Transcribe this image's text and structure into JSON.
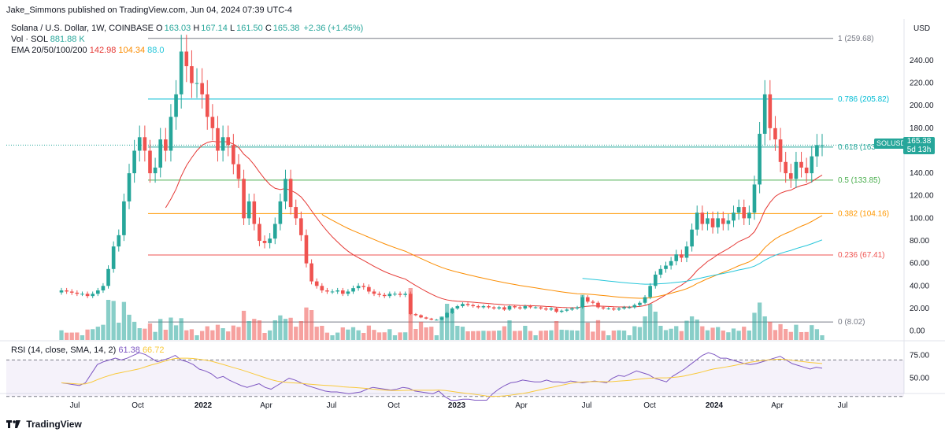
{
  "publisher": "Jake_Simmons published on TradingView.com, Jun 04, 2024 07:39 UTC-4",
  "legend": {
    "symbol": "Solana / U.S. Dollar, 1W, COINBASE",
    "o_label": "O",
    "o": "163.03",
    "h_label": "H",
    "h": "167.14",
    "l_label": "L",
    "l": "161.50",
    "c_label": "C",
    "c": "165.38",
    "change": "+2.36 (+1.45%)",
    "vol_label": "Vol · SOL",
    "vol": "881.88 K",
    "ema_label": "EMA 20/50/100/200",
    "ema20": "142.98",
    "ema50": "104.34",
    "ema100": "88.0",
    "rsi_label": "RSI (14, close, SMA, 14, 2)",
    "rsi": "61.38",
    "rsi_sma": "66.72"
  },
  "currency": "USD",
  "brand": "TradingView",
  "price_badge": {
    "symbol": "SOLUSD",
    "price": "165.38",
    "countdown": "5d 13h"
  },
  "colors": {
    "up": "#26a69a",
    "down": "#ef5350",
    "ema20": "#e53935",
    "ema50": "#fb8c00",
    "ema100": "#26c6da",
    "rsi": "#7e57c2",
    "rsi_sma": "#f9c93b"
  },
  "chart_data": {
    "type": "candlestick",
    "x_axis": [
      "Jul",
      "Oct",
      "2022",
      "Apr",
      "Jul",
      "Oct",
      "2023",
      "Apr",
      "Jul",
      "Oct",
      "2024",
      "Apr",
      "Jul"
    ],
    "y_axis": [
      "0.00",
      "20.00",
      "40.00",
      "60.00",
      "80.00",
      "100.00",
      "120.00",
      "140.00",
      "160.00",
      "180.00",
      "200.00",
      "220.00",
      "240.00"
    ],
    "ylim": [
      -8,
      270
    ],
    "fib_levels": [
      {
        "label": "1 (259.68)",
        "value": 259.68,
        "color": "#787b86"
      },
      {
        "label": "0.786 (205.82)",
        "value": 205.82,
        "color": "#00bcd4"
      },
      {
        "label": "0.618 (163",
        "value": 163.2,
        "color": "#26a69a"
      },
      {
        "label": "0.5 (133.85)",
        "value": 133.85,
        "color": "#4caf50"
      },
      {
        "label": "0.382 (104.16)",
        "value": 104.16,
        "color": "#ff9800"
      },
      {
        "label": "0.236 (67.41)",
        "value": 67.41,
        "color": "#ef5350"
      },
      {
        "label": "0 (8.02)",
        "value": 8.02,
        "color": "#787b86"
      }
    ],
    "close": [
      36,
      35,
      34,
      33,
      33,
      31,
      33,
      36,
      40,
      55,
      75,
      85,
      115,
      140,
      160,
      172,
      160,
      140,
      145,
      170,
      160,
      190,
      210,
      248,
      235,
      220,
      220,
      210,
      190,
      180,
      160,
      172,
      165,
      148,
      135,
      100,
      115,
      95,
      80,
      78,
      82,
      95,
      115,
      135,
      110,
      100,
      85,
      60,
      44,
      40,
      36,
      35,
      35,
      36,
      33,
      35,
      38,
      40,
      39,
      35,
      33,
      32,
      31,
      33,
      33,
      32,
      33,
      15,
      14,
      12,
      11,
      10,
      10,
      12,
      16,
      20,
      22,
      24,
      23,
      22,
      21,
      22,
      21,
      20,
      21,
      19,
      22,
      21,
      20,
      22,
      21,
      21,
      20,
      19,
      20,
      17,
      18,
      19,
      20,
      21,
      30,
      26,
      25,
      21,
      20,
      20,
      19,
      20,
      21,
      21,
      23,
      25,
      30,
      40,
      50,
      55,
      58,
      62,
      68,
      65,
      75,
      90,
      105,
      95,
      100,
      92,
      100,
      95,
      98,
      105,
      110,
      100,
      105,
      130,
      175,
      210,
      180,
      170,
      150,
      140,
      135,
      150,
      145,
      140,
      155,
      165,
      165
    ],
    "rsi": [
      45,
      44,
      43,
      42,
      45,
      55,
      65,
      68,
      70,
      72,
      70,
      72,
      75,
      78,
      76,
      72,
      68,
      70,
      72,
      75,
      70,
      68,
      65,
      60,
      58,
      55,
      50,
      52,
      48,
      45,
      42,
      40,
      42,
      44,
      40,
      38,
      42,
      46,
      50,
      48,
      45,
      42,
      40,
      38,
      36,
      35,
      35,
      34,
      33,
      34,
      35,
      38,
      40,
      39,
      38,
      37,
      38,
      40,
      39,
      36,
      35,
      34,
      33,
      36,
      30,
      26,
      26,
      27,
      27,
      26,
      26,
      26,
      33,
      38,
      42,
      45,
      46,
      48,
      47,
      46,
      46,
      48,
      46,
      46,
      45,
      47,
      46,
      45,
      46,
      47,
      46,
      45,
      50,
      53,
      52,
      55,
      58,
      56,
      54,
      50,
      48,
      46,
      52,
      56,
      60,
      65,
      70,
      75,
      78,
      76,
      72,
      72,
      70,
      68,
      66,
      65,
      66,
      68,
      70,
      72,
      74,
      70,
      66,
      64,
      62,
      60,
      62,
      61
    ],
    "rsi_levels": [
      "75.00",
      "50.00"
    ]
  }
}
